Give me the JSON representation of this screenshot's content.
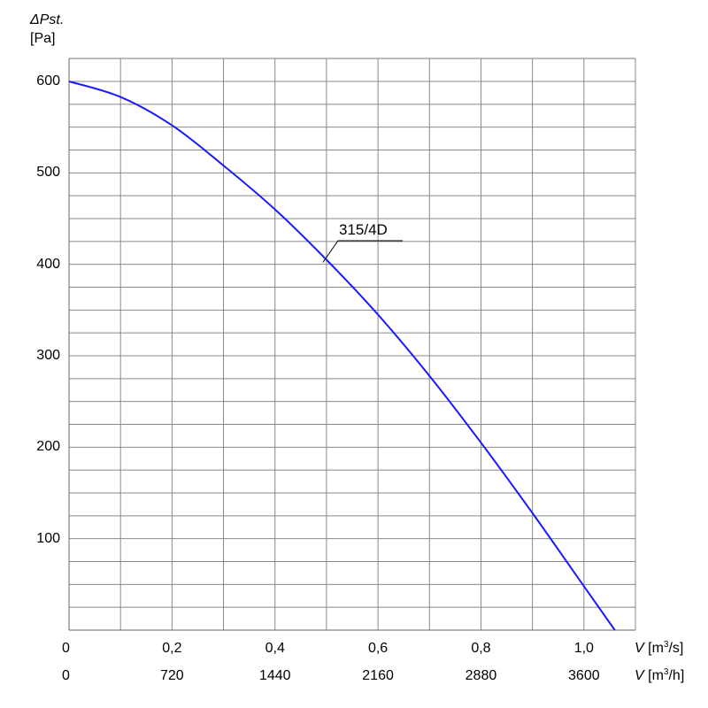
{
  "chart_data": {
    "type": "line",
    "ylabel": {
      "symbol": "ΔPst.",
      "unit": "[Pa]"
    },
    "xlabel_m3s": {
      "symbol": "V",
      "unit_pre": "[m",
      "unit_sup": "3",
      "unit_post": "/s]"
    },
    "xlabel_m3h": {
      "symbol": "V",
      "unit_pre": "[m",
      "unit_sup": "3",
      "unit_post": "/h]"
    },
    "ylim": [
      0,
      600
    ],
    "xlim": [
      0,
      1.1
    ],
    "grid": true,
    "y_ticks": [
      {
        "value": 600,
        "label": "600"
      },
      {
        "value": 500,
        "label": "500"
      },
      {
        "value": 400,
        "label": "400"
      },
      {
        "value": 300,
        "label": "300"
      },
      {
        "value": 200,
        "label": "200"
      },
      {
        "value": 100,
        "label": "100"
      }
    ],
    "x_ticks_m3s": [
      {
        "value": 0,
        "label": "0"
      },
      {
        "value": 0.2,
        "label": "0,2"
      },
      {
        "value": 0.4,
        "label": "0,4"
      },
      {
        "value": 0.6,
        "label": "0,6"
      },
      {
        "value": 0.8,
        "label": "0,8"
      },
      {
        "value": 1.0,
        "label": "1,0"
      }
    ],
    "x_ticks_m3h": [
      {
        "value": 0,
        "label": "0"
      },
      {
        "value": 0.2,
        "label": "720"
      },
      {
        "value": 0.4,
        "label": "1440"
      },
      {
        "value": 0.6,
        "label": "2160"
      },
      {
        "value": 0.8,
        "label": "2880"
      },
      {
        "value": 1.0,
        "label": "3600"
      }
    ],
    "series": [
      {
        "name": "315/4D",
        "color": "#1a1aff",
        "x": [
          0,
          0.1,
          0.2,
          0.3,
          0.4,
          0.5,
          0.6,
          0.7,
          0.8,
          0.9,
          1.0,
          1.06
        ],
        "y": [
          600,
          583,
          552,
          508,
          460,
          405,
          345,
          278,
          205,
          128,
          48,
          0
        ]
      }
    ],
    "annotation": {
      "text": "315/4D",
      "x": 0.5,
      "y": 405
    }
  }
}
